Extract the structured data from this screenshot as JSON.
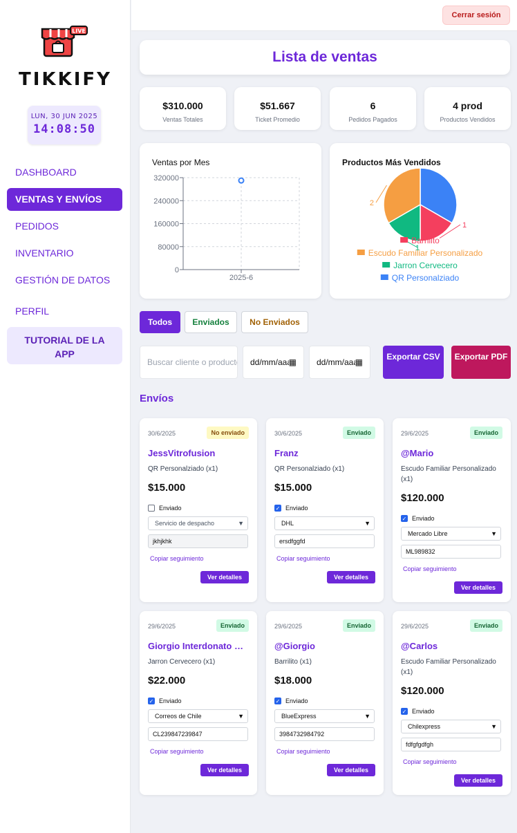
{
  "app": {
    "brand": "TIKKIFY",
    "logo_icon": "shop-live-icon",
    "logo_badge": "LIVE"
  },
  "clock": {
    "date": "LUN, 30 JUN 2025",
    "time": "14:08:50"
  },
  "nav": {
    "dashboard": "DASHBOARD",
    "ventas": "VENTAS Y ENVÍOS",
    "pedidos": "PEDIDOS",
    "inventario": "INVENTARIO",
    "gestion": "GESTIÓN DE DATOS",
    "perfil": "PERFIL",
    "tutorial": "TUTORIAL DE LA APP"
  },
  "header": {
    "logout": "Cerrar sesión",
    "title": "Lista de ventas"
  },
  "stats": [
    {
      "value": "$310.000",
      "label": "Ventas Totales"
    },
    {
      "value": "$51.667",
      "label": "Ticket Promedio"
    },
    {
      "value": "6",
      "label": "Pedidos Pagados"
    },
    {
      "value": "4 prod",
      "label": "Productos Vendidos"
    }
  ],
  "chart_data": [
    {
      "type": "scatter",
      "title": "Ventas por Mes",
      "categories": [
        "2025-6"
      ],
      "values": [
        310000
      ],
      "yticks": [
        "320000",
        "240000",
        "160000",
        "80000",
        "0"
      ],
      "ylim": [
        0,
        320000
      ],
      "grid": true
    },
    {
      "type": "pie",
      "title": "Productos Más Vendidos",
      "labels": [
        "Barrilito",
        "Escudo Familiar Personalizado",
        "Jarron Cervecero",
        "QR Personalziado"
      ],
      "values": [
        1,
        2,
        1,
        2
      ],
      "value_labels": [
        "1",
        "2",
        "1",
        ""
      ],
      "colors": [
        "#f43f5e",
        "#f59e42",
        "#10b981",
        "#3b82f6"
      ],
      "legend": "bottom"
    }
  ],
  "filters": {
    "all": "Todos",
    "sent": "Enviados",
    "not_sent": "No Enviados"
  },
  "search": {
    "placeholder": "Buscar cliente o producto"
  },
  "date_from": {
    "placeholder": "dd/mm/aaaa"
  },
  "date_to": {
    "placeholder": "dd/mm/aaaa"
  },
  "export": {
    "csv": "Exportar CSV",
    "pdf": "Exportar PDF"
  },
  "section_title": "Envíos",
  "card_labels": {
    "checkbox": "Enviado",
    "copy": "Copiar seguimiento",
    "details": "Ver detalles"
  },
  "cards": [
    {
      "date": "30/6/2025",
      "status": "No enviado",
      "name": "JessVitrofusion",
      "product": "QR Personalziado (x1)",
      "price": "$15.000",
      "sent": false,
      "courier": "Servicio de despacho",
      "tracking": "jkhjkhk"
    },
    {
      "date": "30/6/2025",
      "status": "Enviado",
      "name": "Franz",
      "product": "QR Personalziado (x1)",
      "price": "$15.000",
      "sent": true,
      "courier": "DHL",
      "tracking": "ersdfggfd"
    },
    {
      "date": "29/6/2025",
      "status": "Enviado",
      "name": "@Mario",
      "product": "Escudo Familiar Personalizado (x1)",
      "price": "$120.000",
      "sent": true,
      "courier": "Mercado Libre",
      "tracking": "ML989832"
    },
    {
      "date": "29/6/2025",
      "status": "Enviado",
      "name": "Giorgio Interdonato Mancilla",
      "product": "Jarron Cervecero (x1)",
      "price": "$22.000",
      "sent": true,
      "courier": "Correos de Chile",
      "tracking": "CL239847239847"
    },
    {
      "date": "29/6/2025",
      "status": "Enviado",
      "name": "@Giorgio",
      "product": "Barrilito (x1)",
      "price": "$18.000",
      "sent": true,
      "courier": "BlueExpress",
      "tracking": "3984732984792"
    },
    {
      "date": "29/6/2025",
      "status": "Enviado",
      "name": "@Carlos",
      "product": "Escudo Familiar Personalizado (x1)",
      "price": "$120.000",
      "sent": true,
      "courier": "Chilexpress",
      "tracking": "fdfgfgdfgh"
    }
  ]
}
